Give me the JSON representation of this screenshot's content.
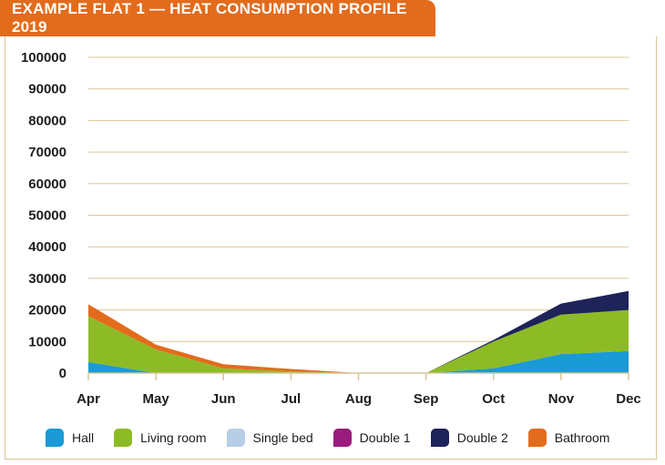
{
  "header": {
    "title": "EXAMPLE FLAT 1 — HEAT CONSUMPTION PROFILE 2019"
  },
  "chart_data": {
    "type": "area",
    "stacked": true,
    "title": "EXAMPLE FLAT 1 — HEAT CONSUMPTION PROFILE 2019",
    "xlabel": "",
    "ylabel": "",
    "categories": [
      "Apr",
      "May",
      "Jun",
      "Jul",
      "Aug",
      "Sep",
      "Oct",
      "Nov",
      "Dec"
    ],
    "ylim": [
      0,
      100000
    ],
    "yticks": [
      0,
      10000,
      20000,
      30000,
      40000,
      50000,
      60000,
      70000,
      80000,
      90000,
      100000
    ],
    "grid": "horizontal",
    "legend_position": "bottom",
    "series": [
      {
        "name": "Hall",
        "color": "#1a9ad6",
        "values": [
          3500,
          0,
          0,
          0,
          0,
          0,
          1500,
          6000,
          7000
        ]
      },
      {
        "name": "Living room",
        "color": "#8dbb25",
        "values": [
          14500,
          7500,
          1500,
          500,
          0,
          0,
          8500,
          12500,
          13000
        ]
      },
      {
        "name": "Single bed",
        "color": "#b7cfe6",
        "values": [
          0,
          0,
          0,
          0,
          0,
          0,
          0,
          0,
          0
        ]
      },
      {
        "name": "Double 1",
        "color": "#9a1c7c",
        "values": [
          0,
          0,
          0,
          0,
          0,
          0,
          0,
          0,
          0
        ]
      },
      {
        "name": "Double 2",
        "color": "#1e2359",
        "values": [
          0,
          0,
          0,
          0,
          0,
          0,
          500,
          3500,
          6000
        ]
      },
      {
        "name": "Bathroom",
        "color": "#e36b1c",
        "values": [
          3800,
          1500,
          1300,
          800,
          0,
          0,
          0,
          0,
          0
        ]
      }
    ]
  }
}
